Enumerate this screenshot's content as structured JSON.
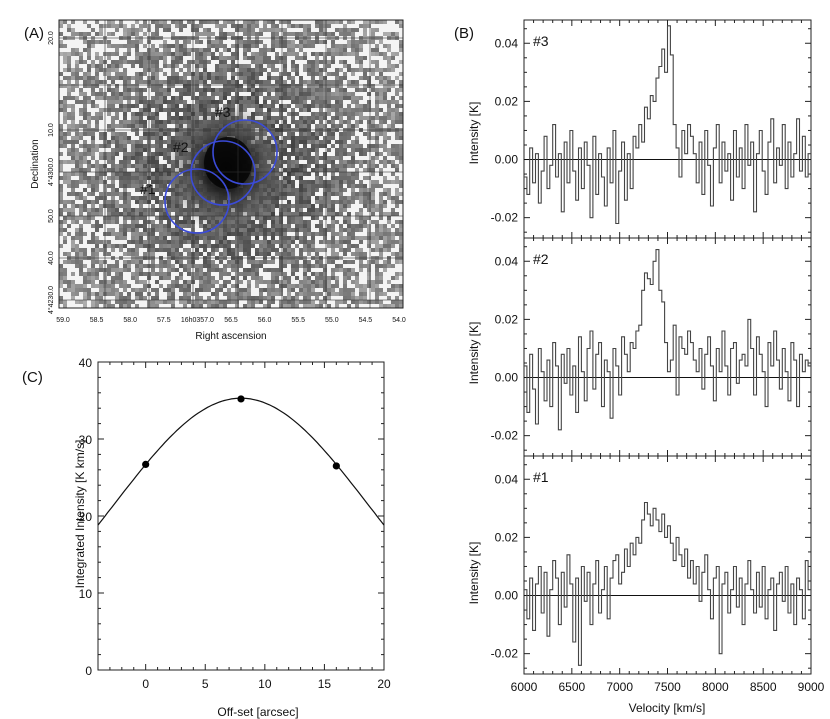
{
  "panel_a": {
    "label": "(A)",
    "xlabel": "Right ascension",
    "ylabel": "Declination",
    "x_ticks": [
      "59.0",
      "58.5",
      "58.0",
      "57.5",
      "16h0357.0",
      "56.5",
      "56.0",
      "55.5",
      "55.0",
      "54.5",
      "54.0"
    ],
    "y_ticks": [
      "20.0",
      "10.0",
      "4°4300.0",
      "50.0",
      "40.0",
      "4°4230.0"
    ],
    "apertures": [
      {
        "label": "#1",
        "color": "#3b4bd8"
      },
      {
        "label": "#2",
        "color": "#3b4bd8"
      },
      {
        "label": "#3",
        "color": "#3b4bd8"
      }
    ]
  },
  "chart_data": [
    {
      "type": "scatter",
      "panel": "(C)",
      "title": "",
      "xlabel": "Off-set [arcsec]",
      "ylabel": "Integrated Intensity [K km/s]",
      "xlim": [
        -4,
        20
      ],
      "ylim": [
        0,
        40
      ],
      "x_ticks": [
        0,
        5,
        10,
        15,
        20
      ],
      "y_ticks": [
        0,
        10,
        20,
        30,
        40
      ],
      "points": [
        {
          "x": 0,
          "y": 26.7
        },
        {
          "x": 8,
          "y": 35.2
        },
        {
          "x": 16,
          "y": 26.5
        }
      ],
      "fit_curve": {
        "type": "gaussian",
        "amplitude": 35.3,
        "center": 8.0,
        "sigma": 10.7
      }
    },
    {
      "type": "line",
      "panel": "(B)",
      "panel_label": "#3",
      "xlabel": "",
      "ylabel": "Intensity [K]",
      "xlim": [
        6000,
        9000
      ],
      "ylim": [
        -0.027,
        0.048
      ],
      "y_ticks": [
        "0.04",
        "0.02",
        "0.00",
        "-0.02"
      ],
      "series": [
        {
          "name": "spectrum #3",
          "x": [
            6000,
            6030,
            6060,
            6090,
            6120,
            6150,
            6180,
            6210,
            6240,
            6270,
            6300,
            6330,
            6360,
            6390,
            6420,
            6450,
            6480,
            6510,
            6540,
            6570,
            6600,
            6630,
            6660,
            6690,
            6720,
            6750,
            6780,
            6810,
            6840,
            6870,
            6900,
            6930,
            6960,
            6990,
            7020,
            7050,
            7080,
            7110,
            7140,
            7170,
            7200,
            7230,
            7260,
            7290,
            7320,
            7350,
            7380,
            7410,
            7440,
            7470,
            7500,
            7530,
            7560,
            7590,
            7620,
            7650,
            7680,
            7710,
            7740,
            7770,
            7800,
            7830,
            7860,
            7890,
            7920,
            7950,
            7980,
            8010,
            8040,
            8070,
            8100,
            8130,
            8160,
            8190,
            8220,
            8250,
            8280,
            8310,
            8340,
            8370,
            8400,
            8430,
            8460,
            8490,
            8520,
            8550,
            8580,
            8610,
            8640,
            8670,
            8700,
            8730,
            8760,
            8790,
            8820,
            8850,
            8880,
            8910,
            8940,
            8970
          ],
          "values": [
            -0.006,
            -0.012,
            0.004,
            -0.008,
            0.002,
            -0.015,
            -0.004,
            0.008,
            -0.01,
            -0.002,
            0.012,
            -0.006,
            0.002,
            -0.018,
            0.006,
            -0.008,
            0.01,
            -0.004,
            -0.014,
            0.004,
            -0.01,
            0.006,
            -0.002,
            -0.02,
            0.008,
            -0.012,
            0.002,
            -0.006,
            -0.016,
            0.004,
            -0.008,
            0.01,
            -0.022,
            -0.004,
            0.006,
            -0.014,
            0.002,
            -0.01,
            0.008,
            0.004,
            0.012,
            0.006,
            0.018,
            0.014,
            0.022,
            0.02,
            0.028,
            0.032,
            0.038,
            0.03,
            0.046,
            0.036,
            0.012,
            0.004,
            -0.006,
            0.01,
            0.002,
            0.012,
            0.008,
            0.002,
            -0.008,
            0.006,
            -0.012,
            0.01,
            -0.002,
            -0.016,
            0.004,
            0.012,
            -0.008,
            0.006,
            -0.004,
            0.002,
            -0.014,
            0.01,
            -0.006,
            0.004,
            -0.01,
            0.012,
            -0.002,
            0.006,
            -0.018,
            0.002,
            0.01,
            -0.004,
            -0.012,
            0.006,
            0.014,
            -0.008,
            0.004,
            -0.002,
            0.012,
            -0.01,
            0.006,
            -0.006,
            0.002,
            0.014,
            -0.004,
            0.008,
            -0.006,
            0.002
          ]
        }
      ]
    },
    {
      "type": "line",
      "panel": "(B)",
      "panel_label": "#2",
      "xlabel": "",
      "ylabel": "Intensity [K]",
      "xlim": [
        6000,
        9000
      ],
      "ylim": [
        -0.027,
        0.048
      ],
      "y_ticks": [
        "0.04",
        "0.02",
        "0.00",
        "-0.02"
      ],
      "series": [
        {
          "name": "spectrum #2",
          "x": [
            6000,
            6030,
            6060,
            6090,
            6120,
            6150,
            6180,
            6210,
            6240,
            6270,
            6300,
            6330,
            6360,
            6390,
            6420,
            6450,
            6480,
            6510,
            6540,
            6570,
            6600,
            6630,
            6660,
            6690,
            6720,
            6750,
            6780,
            6810,
            6840,
            6870,
            6900,
            6930,
            6960,
            6990,
            7020,
            7050,
            7080,
            7110,
            7140,
            7170,
            7200,
            7230,
            7260,
            7290,
            7320,
            7350,
            7380,
            7410,
            7440,
            7470,
            7500,
            7530,
            7560,
            7590,
            7620,
            7650,
            7680,
            7710,
            7740,
            7770,
            7800,
            7830,
            7860,
            7890,
            7920,
            7950,
            7980,
            8010,
            8040,
            8070,
            8100,
            8130,
            8160,
            8190,
            8220,
            8250,
            8280,
            8310,
            8340,
            8370,
            8400,
            8430,
            8460,
            8490,
            8520,
            8550,
            8580,
            8610,
            8640,
            8670,
            8700,
            8730,
            8760,
            8790,
            8820,
            8850,
            8880,
            8910,
            8940,
            8970
          ],
          "values": [
            0.004,
            -0.012,
            0.008,
            -0.004,
            -0.016,
            0.01,
            0.002,
            -0.008,
            0.006,
            -0.01,
            0.012,
            0.004,
            -0.018,
            0.008,
            -0.002,
            0.01,
            -0.006,
            0.004,
            -0.012,
            0.014,
            0.002,
            -0.008,
            0.01,
            0.016,
            -0.004,
            0.008,
            0.012,
            -0.01,
            0.006,
            0.002,
            -0.014,
            0.01,
            0.004,
            -0.006,
            0.014,
            0.008,
            0.002,
            0.012,
            0.01,
            0.016,
            0.018,
            0.03,
            0.036,
            0.034,
            0.032,
            0.04,
            0.044,
            0.03,
            0.026,
            0.012,
            0.002,
            0.006,
            0.018,
            -0.006,
            0.014,
            0.01,
            0.008,
            0.016,
            0.012,
            0.006,
            0.002,
            0.01,
            -0.004,
            0.008,
            0.014,
            0.004,
            -0.008,
            0.01,
            0.002,
            0.016,
            0.004,
            -0.006,
            0.01,
            0.012,
            -0.002,
            0.006,
            0.008,
            0.004,
            0.02,
            0.01,
            -0.006,
            0.014,
            0.008,
            0.002,
            -0.01,
            0.012,
            0.004,
            0.016,
            0.006,
            -0.004,
            0.01,
            0.002,
            -0.008,
            0.012,
            0.006,
            -0.01,
            0.008,
            0.002,
            0.006,
            0.004
          ]
        }
      ]
    },
    {
      "type": "line",
      "panel": "(B)",
      "panel_label": "#1",
      "xlabel": "Velocity [km/s]",
      "ylabel": "Intensity [K]",
      "xlim": [
        6000,
        9000
      ],
      "ylim": [
        -0.027,
        0.048
      ],
      "x_ticks": [
        "6000",
        "6500",
        "7000",
        "7500",
        "8000",
        "8500",
        "9000"
      ],
      "y_ticks": [
        "0.04",
        "0.02",
        "0.00",
        "-0.02"
      ],
      "series": [
        {
          "name": "spectrum #1",
          "x": [
            6000,
            6030,
            6060,
            6090,
            6120,
            6150,
            6180,
            6210,
            6240,
            6270,
            6300,
            6330,
            6360,
            6390,
            6420,
            6450,
            6480,
            6510,
            6540,
            6570,
            6600,
            6630,
            6660,
            6690,
            6720,
            6750,
            6780,
            6810,
            6840,
            6870,
            6900,
            6930,
            6960,
            6990,
            7020,
            7050,
            7080,
            7110,
            7140,
            7170,
            7200,
            7230,
            7260,
            7290,
            7320,
            7350,
            7380,
            7410,
            7440,
            7470,
            7500,
            7530,
            7560,
            7590,
            7620,
            7650,
            7680,
            7710,
            7740,
            7770,
            7800,
            7830,
            7860,
            7890,
            7920,
            7950,
            7980,
            8010,
            8040,
            8070,
            8100,
            8130,
            8160,
            8190,
            8220,
            8250,
            8280,
            8310,
            8340,
            8370,
            8400,
            8430,
            8460,
            8490,
            8520,
            8550,
            8580,
            8610,
            8640,
            8670,
            8700,
            8730,
            8760,
            8790,
            8820,
            8850,
            8880,
            8910,
            8940,
            8970
          ],
          "values": [
            0.002,
            -0.008,
            0.006,
            -0.012,
            0.004,
            0.01,
            -0.006,
            0.008,
            -0.014,
            0.002,
            0.012,
            0.006,
            -0.01,
            0.008,
            -0.004,
            0.014,
            0.004,
            -0.016,
            0.006,
            -0.024,
            0.01,
            -0.002,
            0.008,
            -0.01,
            0.004,
            0.012,
            -0.006,
            0.002,
            0.01,
            -0.008,
            0.006,
            0.012,
            0.014,
            0.004,
            0.008,
            0.016,
            0.01,
            0.018,
            0.014,
            0.02,
            0.018,
            0.026,
            0.032,
            0.028,
            0.024,
            0.03,
            0.026,
            0.022,
            0.028,
            0.02,
            0.024,
            0.018,
            0.012,
            0.02,
            0.014,
            0.01,
            0.016,
            0.006,
            0.012,
            0.004,
            0.01,
            -0.002,
            0.008,
            0.014,
            0.002,
            -0.008,
            0.006,
            0.01,
            -0.02,
            0.004,
            0.008,
            -0.006,
            0.002,
            0.01,
            -0.004,
            0.006,
            -0.01,
            0.004,
            0.012,
            0.002,
            -0.006,
            0.008,
            -0.004,
            0.01,
            -0.008,
            0.002,
            0.006,
            -0.012,
            0.004,
            0.008,
            -0.002,
            0.01,
            -0.006,
            0.004,
            -0.01,
            0.006,
            0.002,
            -0.008,
            0.012,
            0.002
          ]
        }
      ]
    }
  ],
  "panel_b": {
    "label": "(B)"
  },
  "panel_c": {
    "label": "(C)"
  }
}
